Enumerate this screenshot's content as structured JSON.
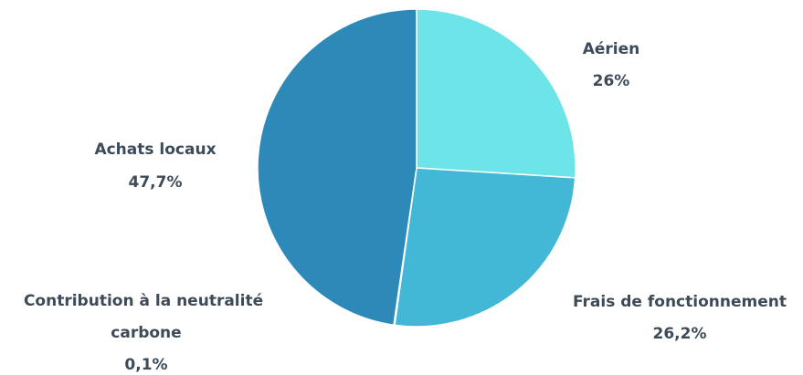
{
  "chart_data": {
    "type": "pie",
    "title": "",
    "slices": [
      {
        "label": "Aérien",
        "value": 26,
        "value_label": "26%",
        "color": "#6ce4e8"
      },
      {
        "label": "Frais de fonctionnement",
        "value": 26.2,
        "value_label": "26,2%",
        "color": "#42b7d6"
      },
      {
        "label": "Contribution à la neutralité carbone",
        "value": 0.1,
        "value_label": "0,1%",
        "color": "#3aa7cf"
      },
      {
        "label": "Achats locaux",
        "value": 47.7,
        "value_label": "47,7%",
        "color": "#2d8ab8"
      }
    ],
    "start_angle": "12 o'clock",
    "direction": "clockwise",
    "label_text_color": "#3d4a58"
  }
}
